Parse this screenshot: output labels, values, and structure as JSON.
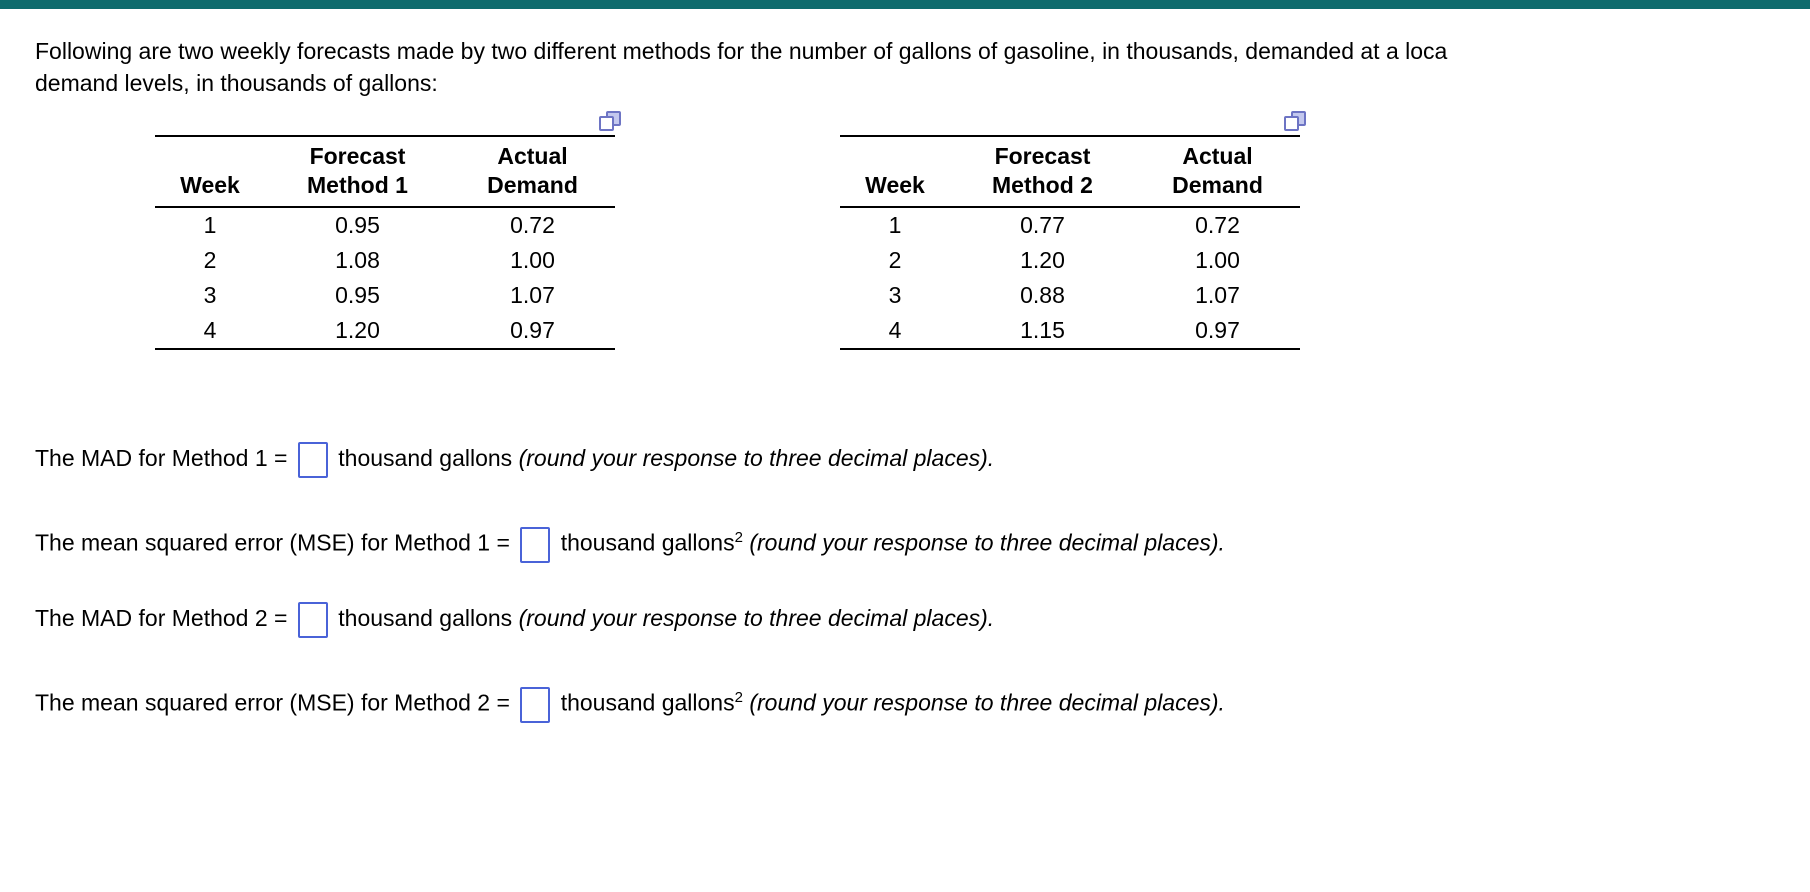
{
  "colors": {
    "topbar": "#0f6b6d",
    "input_border": "#4a63d8",
    "copy_icon_blue": "#6d74c4"
  },
  "icons": {
    "table_copy": "copy-icon (two overlapping squares)"
  },
  "intro": {
    "line1": "Following are two weekly forecasts made by two different methods for the number of gallons of gasoline, in thousands, demanded at a loca",
    "line2": "demand levels, in thousands of gallons:"
  },
  "table1": {
    "col_week": "Week",
    "col_forecast_line1": "Forecast",
    "col_forecast_line2": "Method 1",
    "col_actual_line1": "Actual",
    "col_actual_line2": "Demand",
    "rows": [
      {
        "week": "1",
        "forecast": "0.95",
        "actual": "0.72"
      },
      {
        "week": "2",
        "forecast": "1.08",
        "actual": "1.00"
      },
      {
        "week": "3",
        "forecast": "0.95",
        "actual": "1.07"
      },
      {
        "week": "4",
        "forecast": "1.20",
        "actual": "0.97"
      }
    ]
  },
  "table2": {
    "col_week": "Week",
    "col_forecast_line1": "Forecast",
    "col_forecast_line2": "Method 2",
    "col_actual_line1": "Actual",
    "col_actual_line2": "Demand",
    "rows": [
      {
        "week": "1",
        "forecast": "0.77",
        "actual": "0.72"
      },
      {
        "week": "2",
        "forecast": "1.20",
        "actual": "1.00"
      },
      {
        "week": "3",
        "forecast": "0.88",
        "actual": "1.07"
      },
      {
        "week": "4",
        "forecast": "1.15",
        "actual": "0.97"
      }
    ]
  },
  "answers": [
    {
      "prefix": "The MAD for Method 1 =",
      "value": "",
      "unit": "thousand gallons",
      "note": "(round your response to three decimal places)."
    },
    {
      "prefix": "The mean squared error (MSE) for Method 1 =",
      "value": "",
      "unit": "thousand gallons",
      "sup": "2",
      "note": "(round your response to three decimal places)."
    },
    {
      "prefix": "The MAD for Method 2 =",
      "value": "",
      "unit": "thousand gallons",
      "note": "(round your response to three decimal places)."
    },
    {
      "prefix": "The mean squared error (MSE) for Method 2 =",
      "value": "",
      "unit": "thousand gallons",
      "sup": "2",
      "note": "(round your response to three decimal places)."
    }
  ]
}
